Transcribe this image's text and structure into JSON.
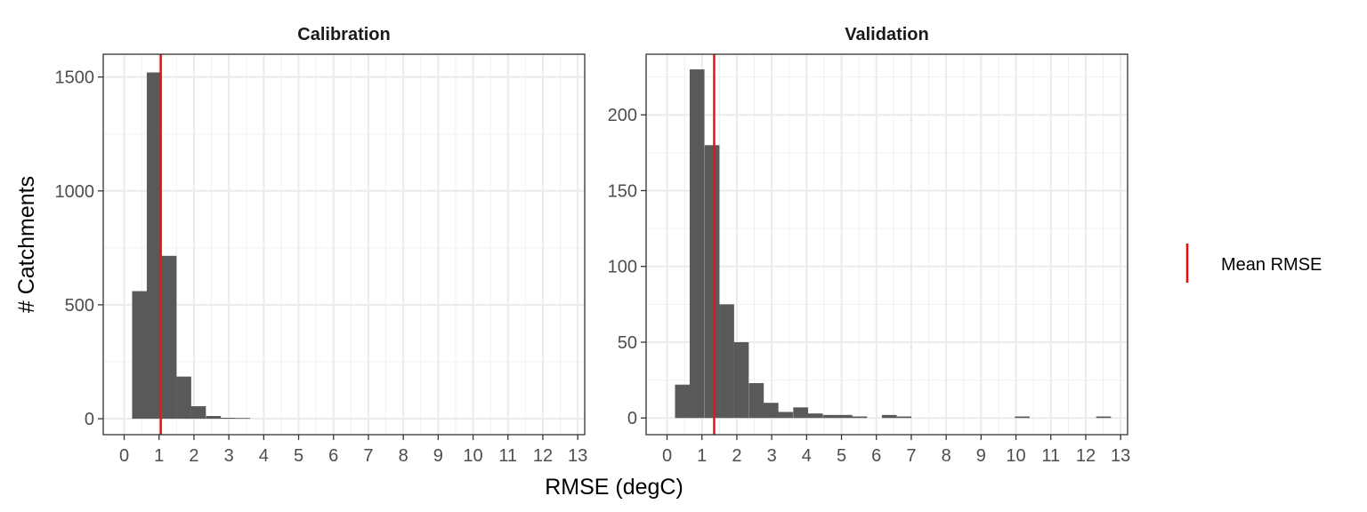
{
  "chart_data": {
    "type": "bar",
    "xlabel": "RMSE (degC)",
    "ylabel": "# Catchments",
    "xlim": [
      -0.6,
      13.2
    ],
    "x_ticks": [
      0,
      1,
      2,
      3,
      4,
      5,
      6,
      7,
      8,
      9,
      10,
      11,
      12,
      13
    ],
    "bin_width": 0.4236,
    "grid": true,
    "legend": {
      "placement": "right",
      "label": "Mean RMSE",
      "color": "#ff0000"
    },
    "bar_color": "#595959",
    "mean_line_color": "#ee1111",
    "panels": [
      {
        "title": "Calibration",
        "ylim": [
          -70,
          1600
        ],
        "y_ticks": [
          0,
          500,
          1000,
          1500
        ],
        "mean": 1.05,
        "bins": [
          {
            "x": 0.44,
            "count": 560
          },
          {
            "x": 0.86,
            "count": 1520
          },
          {
            "x": 1.29,
            "count": 715
          },
          {
            "x": 1.71,
            "count": 185
          },
          {
            "x": 2.13,
            "count": 55
          },
          {
            "x": 2.56,
            "count": 12
          },
          {
            "x": 2.98,
            "count": 4
          },
          {
            "x": 3.4,
            "count": 3
          }
        ]
      },
      {
        "title": "Validation",
        "ylim": [
          -11,
          240
        ],
        "y_ticks": [
          0,
          50,
          100,
          150,
          200
        ],
        "mean": 1.35,
        "bins": [
          {
            "x": 0.44,
            "count": 22
          },
          {
            "x": 0.86,
            "count": 230
          },
          {
            "x": 1.29,
            "count": 180
          },
          {
            "x": 1.71,
            "count": 75
          },
          {
            "x": 2.13,
            "count": 50
          },
          {
            "x": 2.56,
            "count": 23
          },
          {
            "x": 2.98,
            "count": 10
          },
          {
            "x": 3.4,
            "count": 4
          },
          {
            "x": 3.83,
            "count": 7
          },
          {
            "x": 4.25,
            "count": 3
          },
          {
            "x": 4.68,
            "count": 2
          },
          {
            "x": 5.1,
            "count": 2
          },
          {
            "x": 5.52,
            "count": 1
          },
          {
            "x": 6.37,
            "count": 2
          },
          {
            "x": 6.79,
            "count": 1
          },
          {
            "x": 10.18,
            "count": 1
          },
          {
            "x": 12.51,
            "count": 1
          }
        ]
      }
    ]
  }
}
